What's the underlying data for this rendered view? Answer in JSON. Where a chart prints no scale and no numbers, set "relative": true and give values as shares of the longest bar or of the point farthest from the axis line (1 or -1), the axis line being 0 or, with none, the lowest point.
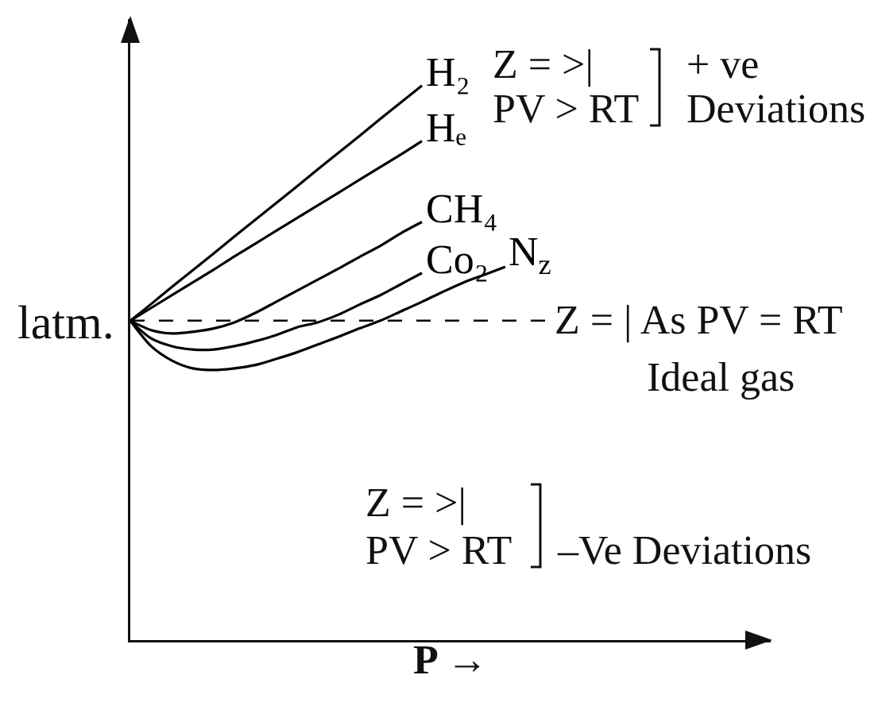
{
  "chart_data": {
    "type": "line",
    "relative": true,
    "categories": [
      null,
      null,
      null,
      null,
      null,
      null,
      null,
      null,
      null,
      null,
      null,
      null,
      null,
      null,
      null,
      null,
      null,
      null,
      null
    ],
    "series": [
      {
        "name": "H₂",
        "color": "#000000",
        "values": [
          0.576,
          0.606,
          0.637,
          0.667,
          0.697,
          0.728,
          0.758,
          0.788,
          0.818,
          0.849,
          0.879,
          0.909,
          0.94,
          0.97,
          1.0,
          null,
          null,
          null,
          null
        ]
      },
      {
        "name": "Hₑ",
        "color": "#000000",
        "values": [
          0.576,
          0.599,
          0.622,
          0.645,
          0.668,
          0.692,
          0.715,
          0.738,
          0.761,
          0.784,
          0.807,
          0.83,
          0.853,
          0.876,
          0.9,
          null,
          null,
          null,
          null
        ]
      },
      {
        "name": "CH₄",
        "color": "#000000",
        "values": [
          0.576,
          0.559,
          0.553,
          0.556,
          0.562,
          0.573,
          0.59,
          0.61,
          0.63,
          0.65,
          0.67,
          0.691,
          0.711,
          0.734,
          0.754,
          null,
          null,
          null,
          null
        ]
      },
      {
        "name": "Co₂",
        "color": "#000000",
        "values": [
          0.576,
          0.544,
          0.53,
          0.524,
          0.524,
          0.53,
          0.539,
          0.55,
          0.564,
          0.573,
          0.587,
          0.605,
          0.622,
          0.642,
          0.662,
          null,
          null,
          null,
          null
        ]
      },
      {
        "name": "N$_{z}$",
        "color": "#000000",
        "values": [
          0.576,
          0.53,
          0.504,
          0.49,
          0.487,
          0.49,
          0.496,
          0.507,
          0.519,
          0.533,
          0.547,
          0.562,
          0.576,
          0.593,
          0.61,
          0.628,
          0.645,
          0.659,
          0.673
        ]
      }
    ],
    "ref_lines": [
      {
        "axis": "y",
        "value": 0.576,
        "label": "Z = | As PV = RT",
        "line_style": "dashed",
        "color": "#000000"
      }
    ],
    "annotations": [
      "latm.",
      "Z = >|",
      "PV > RT",
      "+ ve",
      "Deviations",
      "Ideal gas",
      "Z = >|",
      "PV > RT",
      "–Ve Deviations"
    ],
    "xlabel": "P →",
    "marker": "none",
    "line_style": "solid",
    "grid": false,
    "legend": false
  }
}
